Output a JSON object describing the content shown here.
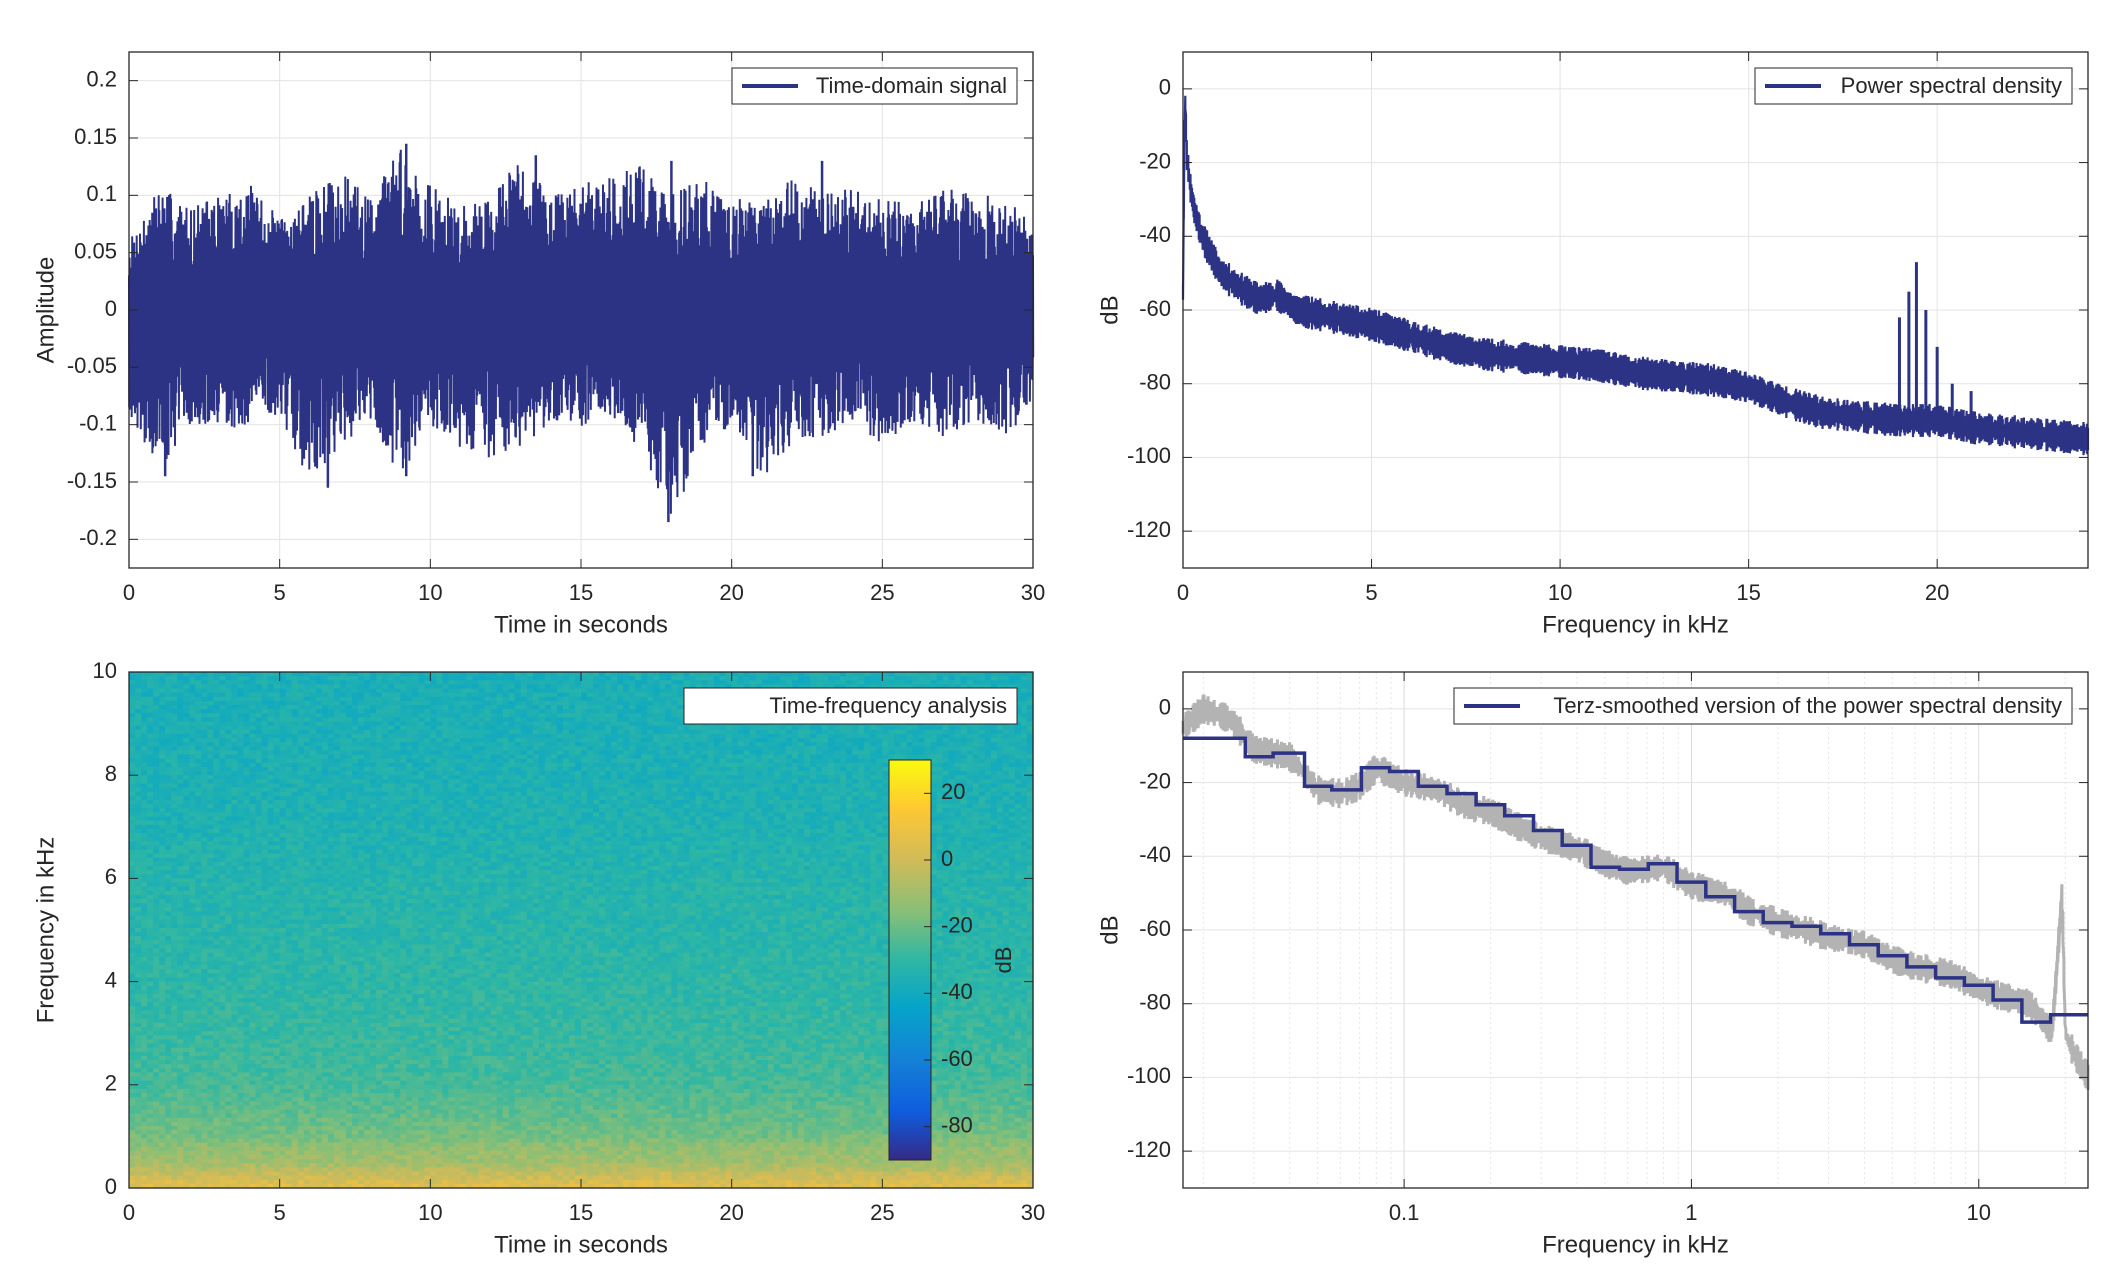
{
  "chart_data": [
    {
      "id": "time_domain",
      "type": "line",
      "xlabel": "Time in seconds",
      "ylabel": "Amplitude",
      "xlim": [
        0,
        30
      ],
      "ylim": [
        -0.225,
        0.225
      ],
      "xticks": [
        0,
        5,
        10,
        15,
        20,
        25,
        30
      ],
      "xtick_labels": [
        "0",
        "5",
        "10",
        "15",
        "20",
        "25",
        "30"
      ],
      "yticks": [
        -0.2,
        -0.15,
        -0.1,
        -0.05,
        0,
        0.05,
        0.1,
        0.15,
        0.2
      ],
      "ytick_labels": [
        "-0.2",
        "-0.15",
        "-0.1",
        "-0.05",
        "0",
        "0.05",
        "0.1",
        "0.15",
        "0.2"
      ],
      "grid": true,
      "legend": "top-right",
      "series": [
        {
          "name": "Time-domain signal",
          "color": "#2c3384",
          "envelope": {
            "x": [
              0,
              1,
              2,
              3,
              4,
              5,
              6,
              7,
              8,
              9,
              10,
              11,
              12,
              13,
              14,
              15,
              16,
              17,
              18,
              19,
              20,
              21,
              22,
              23,
              24,
              25,
              26,
              27,
              28,
              29,
              30
            ],
            "upper": [
              0.06,
              0.11,
              0.09,
              0.1,
              0.11,
              0.08,
              0.1,
              0.12,
              0.1,
              0.145,
              0.11,
              0.09,
              0.1,
              0.135,
              0.1,
              0.11,
              0.12,
              0.13,
              0.1,
              0.12,
              0.1,
              0.09,
              0.12,
              0.1,
              0.11,
              0.1,
              0.09,
              0.11,
              0.1,
              0.1,
              0.08
            ],
            "lower": [
              -0.09,
              -0.14,
              -0.1,
              -0.11,
              -0.1,
              -0.09,
              -0.155,
              -0.12,
              -0.1,
              -0.145,
              -0.1,
              -0.12,
              -0.13,
              -0.12,
              -0.1,
              -0.11,
              -0.1,
              -0.12,
              -0.185,
              -0.12,
              -0.1,
              -0.15,
              -0.12,
              -0.11,
              -0.1,
              -0.12,
              -0.1,
              -0.11,
              -0.1,
              -0.11,
              -0.09
            ]
          },
          "spikes": [
            {
              "x": 1.2,
              "y": -0.145
            },
            {
              "x": 6.6,
              "y": -0.155
            },
            {
              "x": 9.2,
              "y": 0.145
            },
            {
              "x": 9.2,
              "y": -0.145
            },
            {
              "x": 13.5,
              "y": 0.135
            },
            {
              "x": 17.9,
              "y": -0.185
            },
            {
              "x": 18.0,
              "y": 0.13
            },
            {
              "x": 20.7,
              "y": -0.145
            },
            {
              "x": 23.0,
              "y": 0.13
            }
          ]
        }
      ]
    },
    {
      "id": "psd",
      "type": "line",
      "xlabel": "Frequency in kHz",
      "ylabel": "dB",
      "xlim": [
        0,
        24
      ],
      "ylim": [
        -130,
        10
      ],
      "xticks": [
        0,
        5,
        10,
        15,
        20
      ],
      "xtick_labels": [
        "0",
        "5",
        "10",
        "15",
        "20"
      ],
      "yticks": [
        -120,
        -100,
        -80,
        -60,
        -40,
        -20,
        0
      ],
      "ytick_labels": [
        "-120",
        "-100",
        "-80",
        "-60",
        "-40",
        "-20",
        "0"
      ],
      "grid": true,
      "legend": "top-right",
      "series": [
        {
          "name": "Power spectral density",
          "color": "#2c3384",
          "x": [
            0,
            0.05,
            0.1,
            0.2,
            0.3,
            0.5,
            0.8,
            1,
            1.5,
            2,
            2.5,
            3,
            4,
            5,
            6,
            7,
            8,
            9,
            10,
            11,
            12,
            13,
            14,
            15,
            16,
            17,
            18,
            19,
            20,
            21,
            22,
            23,
            24
          ],
          "values": [
            -55,
            0,
            -18,
            -27,
            -33,
            -40,
            -46,
            -50,
            -54,
            -57,
            -56,
            -60,
            -62,
            -64,
            -67,
            -70,
            -72,
            -73,
            -74,
            -75,
            -77,
            -78,
            -79,
            -81,
            -85,
            -88,
            -89,
            -90,
            -90,
            -92,
            -93,
            -94,
            -95
          ],
          "band_halfwidth_db": 3,
          "peaks": [
            {
              "x": 19.0,
              "y": -62
            },
            {
              "x": 19.25,
              "y": -55
            },
            {
              "x": 19.45,
              "y": -47
            },
            {
              "x": 19.7,
              "y": -60
            },
            {
              "x": 20.0,
              "y": -70
            },
            {
              "x": 20.4,
              "y": -80
            },
            {
              "x": 20.9,
              "y": -82
            }
          ]
        }
      ]
    },
    {
      "id": "spectrogram",
      "type": "heatmap",
      "xlabel": "Time in seconds",
      "ylabel": "Frequency in kHz",
      "xlim": [
        0,
        30
      ],
      "ylim": [
        0,
        10
      ],
      "xticks": [
        0,
        5,
        10,
        15,
        20,
        25,
        30
      ],
      "xtick_labels": [
        "0",
        "5",
        "10",
        "15",
        "20",
        "25",
        "30"
      ],
      "yticks": [
        0,
        2,
        4,
        6,
        8,
        10
      ],
      "ytick_labels": [
        "0",
        "2",
        "4",
        "6",
        "8",
        "10"
      ],
      "legend": "top-right",
      "legend_label": "Time-frequency analysis",
      "colorbar": {
        "label": "dB",
        "range": [
          -90,
          30
        ],
        "ticks": [
          20,
          0,
          -20,
          -40,
          -60,
          -80
        ],
        "tick_labels": [
          "20",
          "0",
          "-20",
          "-40",
          "-60",
          "-80"
        ],
        "colormap": "parula"
      },
      "level_profile": {
        "freq_khz": [
          0,
          0.2,
          0.5,
          0.8,
          1.0,
          1.5,
          2.0,
          3.0,
          4.0,
          5.0,
          6.0,
          7.0,
          8.0,
          10.0
        ],
        "level_db": [
          5,
          0,
          -10,
          -13,
          -18,
          -22,
          -26,
          -29,
          -31,
          -32,
          -33,
          -35,
          -36,
          -37
        ]
      }
    },
    {
      "id": "terz_smoothed",
      "type": "line",
      "xlabel": "Frequency in kHz",
      "ylabel": "dB",
      "xscale": "log",
      "xlim": [
        0.017,
        24
      ],
      "ylim": [
        -130,
        10
      ],
      "xticks": [
        0.1,
        1,
        10
      ],
      "xtick_labels": [
        "0.1",
        "1",
        "10"
      ],
      "yticks": [
        -120,
        -100,
        -80,
        -60,
        -40,
        -20,
        0
      ],
      "ytick_labels": [
        "-120",
        "-100",
        "-80",
        "-60",
        "-40",
        "-20",
        "0"
      ],
      "grid": true,
      "legend": "top-right",
      "series": [
        {
          "name": "",
          "color": "#b3b3b3",
          "x": [
            0.017,
            0.02,
            0.025,
            0.03,
            0.04,
            0.05,
            0.06,
            0.07,
            0.08,
            0.1,
            0.13,
            0.16,
            0.2,
            0.25,
            0.3,
            0.4,
            0.5,
            0.6,
            0.8,
            1.0,
            1.3,
            1.6,
            2.0,
            2.5,
            3.0,
            4.0,
            5.0,
            6.0,
            8.0,
            10.0,
            12.0,
            15.0,
            18.0,
            19.5,
            20.0,
            21.0,
            22.0,
            24.0
          ],
          "values": [
            -5,
            0,
            -3,
            -11,
            -13,
            -22,
            -23,
            -21,
            -16,
            -20,
            -22,
            -26,
            -28,
            -32,
            -35,
            -38,
            -42,
            -44,
            -43,
            -48,
            -50,
            -55,
            -58,
            -60,
            -62,
            -64,
            -68,
            -70,
            -72,
            -76,
            -78,
            -80,
            -88,
            -50,
            -88,
            -92,
            -95,
            -100
          ],
          "band_halfwidth_db": 2.5
        },
        {
          "name": "Terz-smoothed version of the power spectral density",
          "color": "#2c3384",
          "x": [
            0.017,
            0.028,
            0.028,
            0.035,
            0.035,
            0.045,
            0.045,
            0.056,
            0.056,
            0.071,
            0.071,
            0.089,
            0.089,
            0.112,
            0.112,
            0.141,
            0.141,
            0.178,
            0.178,
            0.224,
            0.224,
            0.282,
            0.282,
            0.355,
            0.355,
            0.447,
            0.447,
            0.562,
            0.562,
            0.708,
            0.708,
            0.891,
            0.891,
            1.122,
            1.122,
            1.413,
            1.413,
            1.778,
            1.778,
            2.239,
            2.239,
            2.818,
            2.818,
            3.548,
            3.548,
            4.467,
            4.467,
            5.623,
            5.623,
            7.079,
            7.079,
            8.913,
            8.913,
            11.22,
            11.22,
            14.13,
            14.13,
            17.78,
            17.78,
            24
          ],
          "values": [
            -8,
            -8,
            -13,
            -13,
            -12,
            -12,
            -21,
            -21,
            -22,
            -22,
            -16,
            -16,
            -17,
            -17,
            -21,
            -21,
            -23,
            -23,
            -26,
            -26,
            -29,
            -29,
            -33,
            -33,
            -37,
            -37,
            -43,
            -43,
            -43.5,
            -43.5,
            -42,
            -42,
            -47,
            -47,
            -51,
            -51,
            -55,
            -55,
            -58,
            -58,
            -59,
            -59,
            -61,
            -61,
            -64,
            -64,
            -67,
            -67,
            -70,
            -70,
            -73,
            -73,
            -75,
            -75,
            -79,
            -79,
            -85,
            -85,
            -83,
            -83
          ]
        }
      ]
    }
  ]
}
